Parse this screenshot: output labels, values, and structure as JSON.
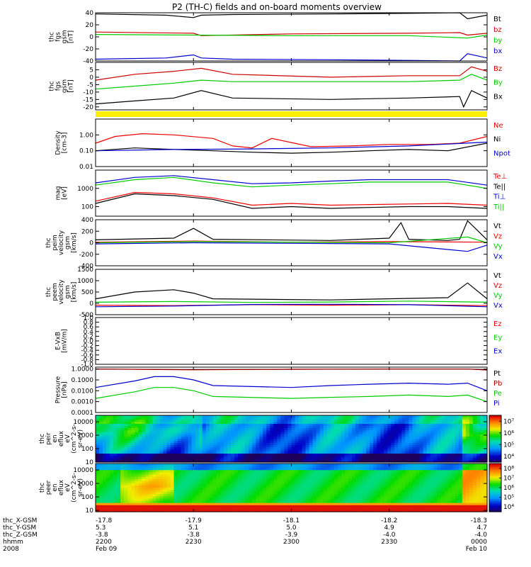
{
  "title": "P2 (TH-C) fields and on-board moments overview",
  "chart_data": [
    {
      "type": "line",
      "ylabel": [
        "thc",
        "fgs",
        "gsm",
        "[nT]"
      ],
      "ylim": [
        -40,
        40
      ],
      "yticks": [
        {
          "v": 40,
          "t": "40"
        },
        {
          "v": 20,
          "t": "20"
        },
        {
          "v": 0,
          "t": "0"
        },
        {
          "v": -20,
          "t": "-20"
        },
        {
          "v": -40,
          "t": "-40"
        }
      ],
      "series": [
        {
          "name": "Bt",
          "color": "#000000",
          "x": [
            0,
            0.18,
            0.25,
            0.27,
            0.35,
            0.6,
            0.8,
            0.93,
            0.95,
            1.0
          ],
          "y": [
            38,
            36,
            32,
            36,
            37,
            38,
            39,
            41,
            30,
            36
          ]
        },
        {
          "name": "bz",
          "color": "#cc0000",
          "x": [
            0,
            0.25,
            0.27,
            0.5,
            0.8,
            0.93,
            0.95,
            1.0
          ],
          "y": [
            8,
            6,
            2,
            5,
            6,
            7,
            3,
            6
          ]
        },
        {
          "name": "by",
          "color": "#00cc00",
          "x": [
            0,
            0.25,
            0.5,
            0.8,
            0.95,
            1.0
          ],
          "y": [
            4,
            3,
            2,
            2,
            -2,
            3
          ]
        },
        {
          "name": "bx",
          "color": "#0000cc",
          "x": [
            0,
            0.18,
            0.25,
            0.27,
            0.35,
            0.6,
            0.8,
            0.93,
            0.95,
            1.0
          ],
          "y": [
            -37,
            -35,
            -30,
            -35,
            -37,
            -38,
            -39,
            -40,
            -28,
            -35
          ]
        }
      ]
    },
    {
      "type": "line",
      "ylabel": [
        "thc",
        "fgs",
        "gsm",
        "[nT]"
      ],
      "ylim": [
        -22,
        10
      ],
      "yticks": [
        {
          "v": 5,
          "t": "5"
        },
        {
          "v": 0,
          "t": "0"
        },
        {
          "v": -5,
          "t": "-5"
        },
        {
          "v": -10,
          "t": "-10"
        },
        {
          "v": -15,
          "t": "-15"
        },
        {
          "v": -20,
          "t": "-20"
        }
      ],
      "series": [
        {
          "name": "Bz",
          "color": "#cc0000",
          "x": [
            0,
            0.1,
            0.2,
            0.27,
            0.35,
            0.6,
            0.8,
            0.93,
            0.96,
            1.0
          ],
          "y": [
            -2,
            2,
            4,
            6,
            2,
            0,
            1,
            1,
            7,
            4
          ]
        },
        {
          "name": "By",
          "color": "#00cc00",
          "x": [
            0,
            0.1,
            0.2,
            0.27,
            0.35,
            0.6,
            0.8,
            0.93,
            0.96,
            1.0
          ],
          "y": [
            -8,
            -6,
            -4,
            -2,
            -3,
            -3,
            -3,
            -2,
            2,
            -2
          ]
        },
        {
          "name": "Bx",
          "color": "#000000",
          "x": [
            0,
            0.1,
            0.2,
            0.27,
            0.35,
            0.6,
            0.8,
            0.93,
            0.94,
            0.96,
            1.0
          ],
          "y": [
            -18,
            -16,
            -14,
            -9,
            -14,
            -15,
            -14,
            -13,
            -20,
            -9,
            -14
          ]
        }
      ]
    },
    {
      "type": "line",
      "ylabel": [
        "Density",
        "[cm-3]"
      ],
      "yscale": "log",
      "ylim": [
        0.01,
        10
      ],
      "yticks": [
        {
          "v": 1,
          "t": "1.00"
        },
        {
          "v": 0.1,
          "t": "0.10"
        },
        {
          "v": 0.01,
          "t": "0.01"
        }
      ],
      "series": [
        {
          "name": "Ne",
          "color": "#ee0000",
          "x": [
            0,
            0.05,
            0.12,
            0.2,
            0.3,
            0.35,
            0.4,
            0.45,
            0.55,
            0.65,
            0.75,
            0.85,
            0.93,
            1.0
          ],
          "y": [
            0.3,
            0.8,
            1.2,
            1.0,
            0.6,
            0.2,
            0.15,
            0.6,
            0.18,
            0.2,
            0.25,
            0.25,
            0.3,
            0.8
          ]
        },
        {
          "name": "Ni",
          "color": "#000000",
          "x": [
            0,
            0.1,
            0.2,
            0.3,
            0.4,
            0.5,
            0.6,
            0.7,
            0.8,
            0.9,
            1.0
          ],
          "y": [
            0.1,
            0.15,
            0.12,
            0.1,
            0.08,
            0.07,
            0.08,
            0.1,
            0.12,
            0.1,
            0.3
          ]
        },
        {
          "name": "Npot",
          "color": "#0000cc",
          "x": [
            0,
            0.2,
            0.4,
            0.6,
            0.8,
            1.0
          ],
          "y": [
            0.1,
            0.12,
            0.13,
            0.15,
            0.2,
            0.35
          ]
        }
      ]
    },
    {
      "type": "line",
      "ylabel": [
        "mag",
        "[eV]"
      ],
      "yscale": "log",
      "ylim": [
        30,
        10000
      ],
      "yticks": [
        {
          "v": 1000,
          "t": "1000"
        },
        {
          "v": 100,
          "t": "100"
        }
      ],
      "series": [
        {
          "name": "Te⊥",
          "color": "#ee0000",
          "x": [
            0,
            0.1,
            0.2,
            0.3,
            0.4,
            0.5,
            0.6,
            0.7,
            0.8,
            0.9,
            1.0
          ],
          "y": [
            200,
            600,
            500,
            300,
            120,
            150,
            120,
            130,
            140,
            150,
            120
          ]
        },
        {
          "name": "Te||",
          "color": "#000000",
          "x": [
            0,
            0.1,
            0.2,
            0.3,
            0.4,
            0.5,
            0.6,
            0.7,
            0.8,
            0.9,
            1.0
          ],
          "y": [
            150,
            500,
            400,
            250,
            80,
            100,
            80,
            90,
            100,
            100,
            80
          ]
        },
        {
          "name": "Ti⊥",
          "color": "#0000cc",
          "x": [
            0,
            0.1,
            0.2,
            0.3,
            0.4,
            0.5,
            0.6,
            0.7,
            0.8,
            0.9,
            1.0
          ],
          "y": [
            2000,
            4000,
            5000,
            3000,
            1800,
            2000,
            2500,
            3000,
            3000,
            3000,
            1500
          ]
        },
        {
          "name": "Ti||",
          "color": "#00cc00",
          "x": [
            0,
            0.1,
            0.2,
            0.3,
            0.4,
            0.5,
            0.6,
            0.7,
            0.8,
            0.9,
            1.0
          ],
          "y": [
            1500,
            3000,
            4000,
            2000,
            1200,
            1500,
            1800,
            2200,
            2200,
            2200,
            1000
          ]
        }
      ]
    },
    {
      "type": "line",
      "ylabel": [
        "thc",
        "peim",
        "velocity",
        "gsm",
        "[km/s]"
      ],
      "ylim": [
        -400,
        400
      ],
      "yticks": [
        {
          "v": 400,
          "t": "400"
        },
        {
          "v": 200,
          "t": "200"
        },
        {
          "v": 0,
          "t": "0"
        },
        {
          "v": -200,
          "t": "-200"
        },
        {
          "v": -400,
          "t": "-400"
        }
      ],
      "series": [
        {
          "name": "Vt",
          "color": "#000000",
          "x": [
            0,
            0.2,
            0.25,
            0.3,
            0.6,
            0.75,
            0.78,
            0.8,
            0.9,
            0.93,
            0.95,
            1.0
          ],
          "y": [
            50,
            80,
            250,
            60,
            40,
            80,
            350,
            60,
            40,
            60,
            380,
            50
          ]
        },
        {
          "name": "Vz",
          "color": "#ee0000",
          "x": [
            0,
            0.25,
            0.5,
            0.75,
            1.0
          ],
          "y": [
            10,
            30,
            10,
            20,
            10
          ]
        },
        {
          "name": "Vy",
          "color": "#00cc00",
          "x": [
            0,
            0.25,
            0.5,
            0.75,
            0.95,
            1.0
          ],
          "y": [
            0,
            20,
            10,
            0,
            100,
            0
          ]
        },
        {
          "name": "Vx",
          "color": "#0000cc",
          "x": [
            0,
            0.25,
            0.5,
            0.75,
            0.95,
            1.0
          ],
          "y": [
            -20,
            0,
            -10,
            -20,
            -150,
            -40
          ]
        }
      ]
    },
    {
      "type": "line",
      "ylabel": [
        "thc",
        "peem",
        "velocity",
        "gsm",
        "[km/s]"
      ],
      "ylim": [
        -500,
        1500
      ],
      "yticks": [
        {
          "v": 1500,
          "t": "1500"
        },
        {
          "v": 1000,
          "t": "1000"
        },
        {
          "v": 500,
          "t": "500"
        },
        {
          "v": 0,
          "t": "0"
        },
        {
          "v": -500,
          "t": "-500"
        }
      ],
      "series": [
        {
          "name": "Vt",
          "color": "#000000",
          "x": [
            0,
            0.1,
            0.2,
            0.25,
            0.3,
            0.6,
            0.9,
            0.95,
            1.0
          ],
          "y": [
            200,
            500,
            600,
            450,
            200,
            150,
            250,
            900,
            200
          ]
        },
        {
          "name": "Vz",
          "color": "#ee0000",
          "x": [
            0,
            0.2,
            0.4,
            0.6,
            0.8,
            1.0
          ],
          "y": [
            -80,
            -100,
            -60,
            -80,
            -60,
            -100
          ]
        },
        {
          "name": "Vy",
          "color": "#00cc00",
          "x": [
            0,
            0.2,
            0.4,
            0.6,
            0.8,
            1.0
          ],
          "y": [
            50,
            80,
            40,
            60,
            100,
            50
          ]
        },
        {
          "name": "Vx",
          "color": "#0000cc",
          "x": [
            0,
            0.2,
            0.4,
            0.6,
            0.8,
            1.0
          ],
          "y": [
            -150,
            -120,
            -50,
            -40,
            -60,
            -150
          ]
        }
      ]
    },
    {
      "type": "line",
      "ylabel": [
        "E-VxB",
        "[mV/m]"
      ],
      "ylim": [
        -1,
        1
      ],
      "yticks": [
        {
          "v": 1.0,
          "t": "1.0"
        },
        {
          "v": 0.8,
          "t": "0.8"
        },
        {
          "v": 0.6,
          "t": "0.6"
        },
        {
          "v": 0.4,
          "t": "0.4"
        },
        {
          "v": 0.2,
          "t": "0.2"
        },
        {
          "v": 0.0,
          "t": "0.0"
        },
        {
          "v": -0.2,
          "t": "-0.2"
        },
        {
          "v": -0.4,
          "t": "-0.4"
        },
        {
          "v": -0.6,
          "t": "-0.6"
        },
        {
          "v": -0.8,
          "t": "-0.8"
        },
        {
          "v": -1.0,
          "t": "-1.0"
        }
      ],
      "series": [
        {
          "name": "Ez",
          "color": "#ee0000",
          "x": [],
          "y": []
        },
        {
          "name": "Ey",
          "color": "#00cc00",
          "x": [],
          "y": []
        },
        {
          "name": "Ex",
          "color": "#0000cc",
          "x": [],
          "y": []
        }
      ]
    },
    {
      "type": "line",
      "ylabel": [
        "Pressure",
        "[nPa]"
      ],
      "yscale": "log",
      "ylim": [
        0.0001,
        1.5
      ],
      "yticks": [
        {
          "v": 1.0,
          "t": "1.0000"
        },
        {
          "v": 0.1,
          "t": "0.1000"
        },
        {
          "v": 0.01,
          "t": "0.0100"
        },
        {
          "v": 0.001,
          "t": "0.0010"
        },
        {
          "v": 0.0001,
          "t": "0.0001"
        }
      ],
      "series": [
        {
          "name": "Pt",
          "color": "#000000",
          "x": [
            0,
            0.25,
            0.5,
            0.75,
            0.95,
            1.0
          ],
          "y": [
            1.0,
            0.9,
            0.95,
            1.0,
            1.0,
            0.9
          ]
        },
        {
          "name": "Pb",
          "color": "#aa0000",
          "x": [
            0,
            0.25,
            0.5,
            0.75,
            0.95,
            1.0
          ],
          "y": [
            1.0,
            0.85,
            0.95,
            1.0,
            1.0,
            0.8
          ]
        },
        {
          "name": "Pe",
          "color": "#00cc00",
          "x": [
            0,
            0.1,
            0.15,
            0.2,
            0.25,
            0.3,
            0.5,
            0.6,
            0.7,
            0.8,
            0.9,
            0.95,
            1.0
          ],
          "y": [
            0.002,
            0.008,
            0.02,
            0.02,
            0.01,
            0.003,
            0.002,
            0.0025,
            0.003,
            0.004,
            0.003,
            0.004,
            0.001
          ]
        },
        {
          "name": "Pi",
          "color": "#0000cc",
          "x": [
            0,
            0.1,
            0.15,
            0.2,
            0.25,
            0.3,
            0.5,
            0.6,
            0.7,
            0.8,
            0.9,
            0.95,
            1.0
          ],
          "y": [
            0.02,
            0.08,
            0.2,
            0.2,
            0.1,
            0.03,
            0.02,
            0.03,
            0.04,
            0.05,
            0.04,
            0.05,
            0.01
          ]
        }
      ]
    },
    {
      "type": "heatmap",
      "ylabel": [
        "thc",
        "peir",
        "en",
        "eflux",
        "eV",
        "(cm^2-s-",
        "sr-eV)"
      ],
      "yscale": "log",
      "ylim": [
        10,
        30000
      ],
      "yticks": [
        {
          "v": 10000,
          "t": "10000"
        },
        {
          "v": 1000,
          "t": "1000"
        },
        {
          "v": 100,
          "t": "100"
        },
        {
          "v": 10,
          "t": "10"
        }
      ],
      "colorbar": {
        "ticks": [
          {
            "v": 4,
            "t": "10⁴"
          },
          {
            "v": 5,
            "t": "10⁵"
          },
          {
            "v": 6,
            "t": "10⁶"
          },
          {
            "v": 7,
            "t": "10⁷"
          }
        ],
        "range": [
          3.5,
          7.5
        ]
      }
    },
    {
      "type": "heatmap",
      "ylabel": [
        "thc",
        "peer",
        "en",
        "eflux",
        "eV",
        "(cm^2-s-",
        "sr-eV)"
      ],
      "yscale": "log",
      "ylim": [
        8,
        30000
      ],
      "yticks": [
        {
          "v": 10000,
          "t": "10000"
        },
        {
          "v": 1000,
          "t": "1000"
        },
        {
          "v": 100,
          "t": "100"
        },
        {
          "v": 10,
          "t": "10"
        }
      ],
      "colorbar": {
        "ticks": [
          {
            "v": 4,
            "t": "10⁴"
          },
          {
            "v": 5,
            "t": "10⁵"
          },
          {
            "v": 6,
            "t": "10⁶"
          },
          {
            "v": 7,
            "t": "10⁷"
          },
          {
            "v": 8,
            "t": "10⁸"
          }
        ],
        "range": [
          3.5,
          8.5
        ]
      }
    }
  ],
  "bottom_axis": {
    "row_labels": [
      "thc_X-GSM",
      "thc_Y-GSM",
      "thc_Z-GSM",
      "hhmm",
      "2008"
    ],
    "ticks": [
      {
        "pos": 0,
        "vals": [
          "-17.8",
          "5.3",
          "-3.8",
          "2200",
          "Feb 09"
        ]
      },
      {
        "pos": 0.25,
        "vals": [
          "-17.9",
          "5.1",
          "-3.8",
          "2230",
          ""
        ]
      },
      {
        "pos": 0.5,
        "vals": [
          "-18.1",
          "5.0",
          "-3.9",
          "2300",
          ""
        ]
      },
      {
        "pos": 0.75,
        "vals": [
          "-18.2",
          "4.9",
          "-4.0",
          "2330",
          ""
        ]
      },
      {
        "pos": 1.0,
        "vals": [
          "-18.3",
          "4.7",
          "-4.0",
          "0000",
          "Feb 10"
        ]
      }
    ]
  }
}
